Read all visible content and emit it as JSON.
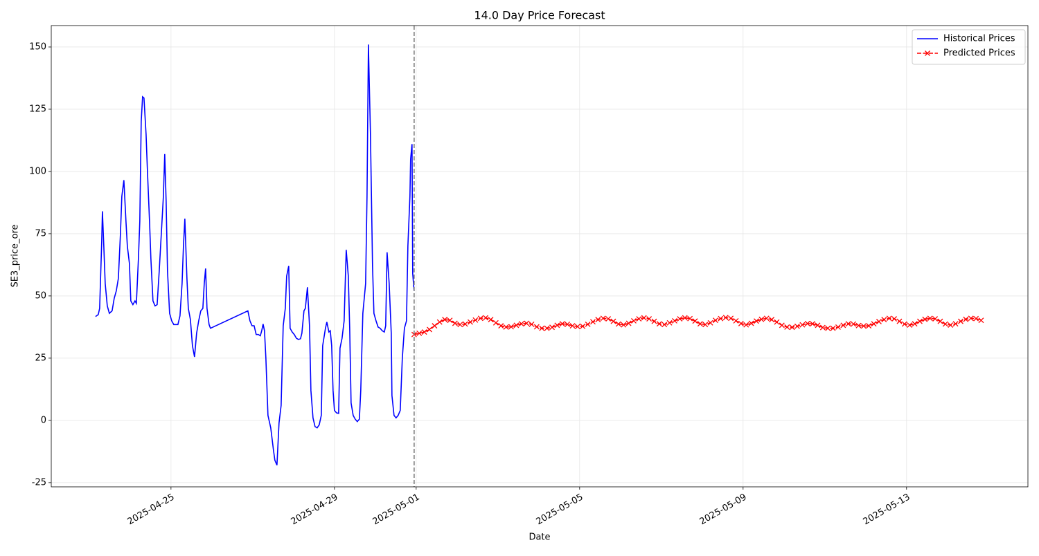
{
  "chart_data": {
    "type": "line",
    "title": "14.0 Day Price Forecast",
    "x_label": "Date",
    "y_label": "SE3_price_ore",
    "xlim": [
      20200.07,
      20223.97
    ],
    "ylim": [
      -26.7,
      158.6
    ],
    "xticks": [
      {
        "value": 20203,
        "label": "2025-04-25"
      },
      {
        "value": 20207,
        "label": "2025-04-29"
      },
      {
        "value": 20209,
        "label": "2025-05-01"
      },
      {
        "value": 20213,
        "label": "2025-05-05"
      },
      {
        "value": 20217,
        "label": "2025-05-09"
      },
      {
        "value": 20221,
        "label": "2025-05-13"
      }
    ],
    "yticks": [
      -25,
      0,
      25,
      50,
      75,
      100,
      125,
      150
    ],
    "grid": true,
    "legend": "upper right",
    "vline": {
      "x": 20208.95,
      "color": "#808080"
    },
    "series": [
      {
        "name": "Historical Prices",
        "color": "#0000ff",
        "linestyle": "solid",
        "marker": "none",
        "x": [
          20201.153,
          20201.22,
          20201.254,
          20201.305,
          20201.322,
          20201.356,
          20201.39,
          20201.441,
          20201.492,
          20201.559,
          20201.61,
          20201.661,
          20201.712,
          20201.763,
          20201.797,
          20201.847,
          20201.898,
          20201.932,
          20201.983,
          20202.017,
          20202.068,
          20202.119,
          20202.153,
          20202.203,
          20202.237,
          20202.271,
          20202.305,
          20202.339,
          20202.39,
          20202.424,
          20202.475,
          20202.508,
          20202.559,
          20202.61,
          20202.661,
          20202.712,
          20202.763,
          20202.814,
          20202.847,
          20202.881,
          20202.915,
          20202.966,
          20203.017,
          20203.068,
          20203.119,
          20203.169,
          20203.22,
          20203.271,
          20203.305,
          20203.339,
          20203.39,
          20203.424,
          20203.475,
          20203.525,
          20203.576,
          20203.627,
          20203.678,
          20203.729,
          20203.78,
          20203.814,
          20203.847,
          20203.881,
          20203.932,
          20203.966,
          20204.881,
          20204.932,
          20204.983,
          20205.034,
          20205.085,
          20205.136,
          20205.186,
          20205.22,
          20205.254,
          20205.288,
          20205.322,
          20205.373,
          20205.441,
          20205.508,
          20205.542,
          20205.593,
          20205.644,
          20205.695,
          20205.746,
          20205.797,
          20205.831,
          20205.881,
          20205.915,
          20205.966,
          20206.017,
          20206.068,
          20206.119,
          20206.169,
          20206.203,
          20206.254,
          20206.288,
          20206.339,
          20206.39,
          20206.424,
          20206.475,
          20206.525,
          20206.576,
          20206.627,
          20206.678,
          20206.712,
          20206.78,
          20206.814,
          20206.864,
          20206.898,
          20206.932,
          20206.966,
          20207.0,
          20207.051,
          20207.102,
          20207.136,
          20207.186,
          20207.237,
          20207.288,
          20207.339,
          20207.373,
          20207.407,
          20207.458,
          20207.508,
          20207.559,
          20207.61,
          20207.644,
          20207.695,
          20207.763,
          20207.797,
          20207.831,
          20207.881,
          20207.932,
          20207.966,
          20208.017,
          20208.068,
          20208.119,
          20208.169,
          20208.22,
          20208.254,
          20208.288,
          20208.339,
          20208.39,
          20208.407,
          20208.458,
          20208.508,
          20208.559,
          20208.61,
          20208.661,
          20208.712,
          20208.763,
          20208.797,
          20208.847,
          20208.864,
          20208.898,
          20208.915,
          20208.949
        ],
        "values": [
          41.7,
          42.5,
          45,
          72,
          84,
          70,
          55,
          46,
          43,
          44,
          49,
          52,
          57,
          75,
          90,
          96.5,
          80,
          70,
          63,
          48,
          46.5,
          48,
          47,
          65,
          80,
          120,
          130,
          129.5,
          115,
          100,
          80,
          65,
          48,
          46,
          46.5,
          60,
          75,
          90,
          107,
          88,
          60,
          43,
          40,
          38.5,
          38.5,
          38.5,
          42,
          55,
          70,
          81,
          57,
          45,
          40.5,
          30,
          25.5,
          35,
          40,
          44,
          45,
          55,
          61,
          45,
          38.5,
          37,
          44,
          40,
          38,
          38,
          34.5,
          34.5,
          34,
          36,
          38.7,
          36,
          25,
          2,
          -3,
          -12,
          -16,
          -18,
          -1,
          6,
          38,
          45,
          58,
          62,
          37,
          35.5,
          34.5,
          33,
          32.5,
          32.8,
          35,
          44,
          45,
          53.5,
          38,
          12,
          1,
          -2.5,
          -3,
          -1.8,
          2,
          30,
          37,
          39.5,
          35.5,
          36,
          30,
          12,
          4,
          3,
          2.8,
          29,
          33,
          40,
          68.5,
          58,
          37,
          7,
          2,
          0.5,
          -0.5,
          0.5,
          12,
          43,
          55,
          90,
          151,
          115,
          62,
          43,
          40,
          37.5,
          37,
          36,
          35.5,
          38,
          67.5,
          55,
          35,
          10,
          2,
          1,
          2,
          4,
          25,
          37,
          40,
          70,
          90,
          105,
          111,
          59,
          52
        ]
      },
      {
        "name": "Predicted Prices",
        "color": "#ff0000",
        "linestyle": "dashed",
        "marker": "x",
        "x": [
          20208.95,
          20209.075,
          20209.2,
          20209.325,
          20209.45,
          20209.575,
          20209.7,
          20209.825,
          20209.95,
          20210.075,
          20210.2,
          20210.325,
          20210.45,
          20210.575,
          20210.7,
          20210.825,
          20210.95,
          20211.075,
          20211.2,
          20211.325,
          20211.45,
          20211.575,
          20211.7,
          20211.825,
          20211.95,
          20212.075,
          20212.2,
          20212.325,
          20212.45,
          20212.575,
          20212.7,
          20212.825,
          20212.95,
          20213.075,
          20213.2,
          20213.325,
          20213.45,
          20213.575,
          20213.7,
          20213.825,
          20213.95,
          20214.075,
          20214.2,
          20214.325,
          20214.45,
          20214.575,
          20214.7,
          20214.825,
          20214.95,
          20215.075,
          20215.2,
          20215.325,
          20215.45,
          20215.575,
          20215.7,
          20215.825,
          20215.95,
          20216.075,
          20216.2,
          20216.325,
          20216.45,
          20216.575,
          20216.7,
          20216.825,
          20216.95,
          20217.075,
          20217.2,
          20217.325,
          20217.45,
          20217.575,
          20217.7,
          20217.825,
          20217.95,
          20218.075,
          20218.2,
          20218.325,
          20218.45,
          20218.575,
          20218.7,
          20218.825,
          20218.95,
          20219.075,
          20219.2,
          20219.325,
          20219.45,
          20219.575,
          20219.7,
          20219.825,
          20219.95,
          20220.075,
          20220.2,
          20220.325,
          20220.45,
          20220.575,
          20220.7,
          20220.825,
          20220.95,
          20221.075,
          20221.2,
          20221.325,
          20221.45,
          20221.575,
          20221.7,
          20221.825,
          20221.95,
          20222.075,
          20222.2,
          20222.325,
          20222.45,
          20222.575,
          20222.7,
          20222.825
        ],
        "values": [
          34.5,
          35,
          35.5,
          36.5,
          38,
          39.5,
          40.5,
          40.2,
          39,
          38.5,
          38.7,
          39.5,
          40.3,
          41,
          41.2,
          40.5,
          39.2,
          38,
          37.5,
          37.6,
          38.2,
          38.8,
          39,
          38.6,
          37.6,
          37,
          37,
          37.4,
          38.2,
          38.8,
          38.6,
          38,
          37.7,
          37.8,
          38.6,
          39.6,
          40.5,
          41,
          40.8,
          39.8,
          38.7,
          38.4,
          39,
          40,
          40.8,
          41.2,
          40.8,
          39.8,
          38.8,
          38.5,
          39.2,
          40,
          40.8,
          41.2,
          40.9,
          39.9,
          38.8,
          38.5,
          39.2,
          40.2,
          40.9,
          41.3,
          41,
          40,
          38.9,
          38.4,
          39,
          39.9,
          40.6,
          41,
          40.5,
          39.5,
          38.2,
          37.5,
          37.4,
          37.8,
          38.4,
          38.9,
          38.8,
          38.2,
          37.3,
          37,
          37,
          37.5,
          38.2,
          38.8,
          38.7,
          38.1,
          37.9,
          38,
          38.8,
          39.7,
          40.5,
          41,
          40.8,
          39.8,
          38.7,
          38.3,
          38.8,
          39.8,
          40.6,
          41,
          40.8,
          39.8,
          38.7,
          38.3,
          38.8,
          39.8,
          40.6,
          41,
          40.9,
          40.2
        ]
      }
    ]
  }
}
